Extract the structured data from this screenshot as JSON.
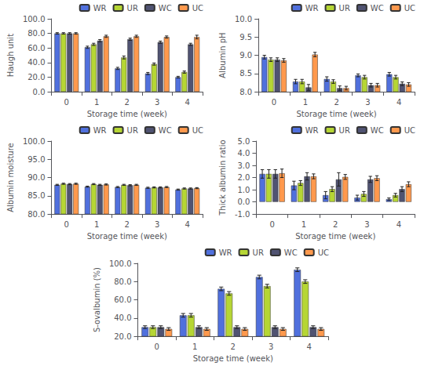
{
  "chart_data": [
    {
      "type": "bar",
      "categories": [
        0,
        1,
        2,
        3,
        4
      ],
      "series": [
        {
          "name": "WR",
          "values": [
            80,
            61,
            32,
            25,
            20
          ],
          "errors": [
            1.0,
            1.5,
            1.5,
            1.5,
            1.2
          ]
        },
        {
          "name": "UR",
          "values": [
            80,
            65,
            47,
            38,
            27
          ],
          "errors": [
            1.0,
            1.5,
            2.0,
            1.5,
            1.5
          ]
        },
        {
          "name": "WC",
          "values": [
            80,
            70,
            72,
            68,
            65
          ],
          "errors": [
            1.0,
            1.5,
            1.5,
            1.5,
            1.5
          ]
        },
        {
          "name": "UC",
          "values": [
            80,
            76,
            76,
            75,
            75
          ],
          "errors": [
            1.0,
            1.5,
            1.5,
            1.5,
            2.5
          ]
        }
      ],
      "xlabel": "Storage time (week)",
      "ylabel": "Haugh unit",
      "ylim": [
        0,
        100
      ],
      "yticks": [
        {
          "value": 0,
          "label": "0.0"
        },
        {
          "value": 20,
          "label": "20.0"
        },
        {
          "value": 40,
          "label": "40.0"
        },
        {
          "value": 60,
          "label": "60.0"
        },
        {
          "value": 80,
          "label": "80.0"
        },
        {
          "value": 100,
          "label": "100.0"
        }
      ],
      "legend": "upper right",
      "grid": false
    },
    {
      "type": "bar",
      "categories": [
        0,
        1,
        2,
        3,
        4
      ],
      "series": [
        {
          "name": "WR",
          "values": [
            8.95,
            8.28,
            8.35,
            8.45,
            8.48
          ],
          "errors": [
            0.05,
            0.06,
            0.06,
            0.04,
            0.05
          ]
        },
        {
          "name": "UR",
          "values": [
            8.88,
            8.28,
            8.28,
            8.4,
            8.4
          ],
          "errors": [
            0.05,
            0.06,
            0.05,
            0.05,
            0.05
          ]
        },
        {
          "name": "WC",
          "values": [
            8.88,
            8.12,
            8.1,
            8.18,
            8.22
          ],
          "errors": [
            0.05,
            0.08,
            0.06,
            0.05,
            0.05
          ]
        },
        {
          "name": "UC",
          "values": [
            8.86,
            9.02,
            8.1,
            8.18,
            8.2
          ],
          "errors": [
            0.05,
            0.06,
            0.05,
            0.05,
            0.05
          ]
        }
      ],
      "xlabel": "Storage time (week)",
      "ylabel": "Albumin pH",
      "ylim": [
        8.0,
        10.0
      ],
      "yticks": [
        {
          "value": 8.0,
          "label": "8.0"
        },
        8.5,
        {
          "value": 9.0,
          "label": "9.0"
        },
        9.5,
        {
          "value": 10.0,
          "label": "10.0"
        }
      ],
      "legend": "upper right",
      "grid": false
    },
    {
      "type": "bar",
      "categories": [
        0,
        1,
        2,
        3,
        4
      ],
      "series": [
        {
          "name": "WR",
          "values": [
            88.0,
            87.5,
            87.4,
            87.2,
            86.7
          ],
          "errors": [
            0.15,
            0.15,
            0.15,
            0.15,
            0.15
          ]
        },
        {
          "name": "UR",
          "values": [
            88.3,
            88.2,
            88.0,
            87.3,
            87.0
          ],
          "errors": [
            0.15,
            0.15,
            0.15,
            0.15,
            0.15
          ]
        },
        {
          "name": "WC",
          "values": [
            88.2,
            88.0,
            87.9,
            87.3,
            87.0
          ],
          "errors": [
            0.15,
            0.15,
            0.15,
            0.15,
            0.15
          ]
        },
        {
          "name": "UC",
          "values": [
            88.3,
            88.1,
            88.0,
            87.4,
            87.1
          ],
          "errors": [
            0.15,
            0.15,
            0.15,
            0.15,
            0.15
          ]
        }
      ],
      "xlabel": "Storage time (week)",
      "ylabel": "Albumin moisture",
      "ylim": [
        80.0,
        100.0
      ],
      "yticks": [
        {
          "value": 80.0,
          "label": "80.0"
        },
        {
          "value": 85.0,
          "label": "85.0"
        },
        {
          "value": 90.0,
          "label": "90.0"
        },
        {
          "value": 95.0,
          "label": "95.0"
        },
        {
          "value": 100.0,
          "label": "100.0"
        }
      ],
      "legend": "upper right",
      "grid": false
    },
    {
      "type": "bar",
      "categories": [
        0,
        1,
        2,
        3,
        4
      ],
      "series": [
        {
          "name": "WR",
          "values": [
            2.3,
            1.35,
            0.55,
            0.35,
            0.22
          ],
          "errors": [
            0.35,
            0.35,
            0.3,
            0.2,
            0.1
          ]
        },
        {
          "name": "UR",
          "values": [
            2.3,
            1.55,
            1.05,
            0.65,
            0.55
          ],
          "errors": [
            0.35,
            0.2,
            0.2,
            0.2,
            0.15
          ]
        },
        {
          "name": "WC",
          "values": [
            2.3,
            2.1,
            1.85,
            1.85,
            1.05
          ],
          "errors": [
            0.35,
            0.3,
            0.55,
            0.25,
            0.2
          ]
        },
        {
          "name": "UC",
          "values": [
            2.35,
            2.1,
            2.05,
            1.95,
            1.45
          ],
          "errors": [
            0.35,
            0.2,
            0.2,
            0.2,
            0.2
          ]
        }
      ],
      "xlabel": "Storage time (week)",
      "ylabel": "Thick albumin ratio",
      "ylim": [
        -1.0,
        5.0
      ],
      "yticks": [
        {
          "value": -1.0,
          "label": "-1.0"
        },
        {
          "value": 0.0,
          "label": "0.0"
        },
        {
          "value": 1.0,
          "label": "1.0"
        },
        {
          "value": 2.0,
          "label": "2.0"
        },
        {
          "value": 3.0,
          "label": "3.0"
        },
        {
          "value": 4.0,
          "label": "4.0"
        },
        {
          "value": 5.0,
          "label": "5.0"
        }
      ],
      "legend": "upper right",
      "grid": false
    },
    {
      "type": "bar",
      "categories": [
        0,
        1,
        2,
        3,
        4
      ],
      "series": [
        {
          "name": "WR",
          "values": [
            30,
            43,
            72,
            85,
            93
          ],
          "errors": [
            1.5,
            2,
            2,
            2,
            2
          ]
        },
        {
          "name": "UR",
          "values": [
            30,
            43,
            67,
            75,
            80
          ],
          "errors": [
            1.5,
            2,
            2,
            2,
            2
          ]
        },
        {
          "name": "WC",
          "values": [
            30,
            30,
            30,
            30,
            30
          ],
          "errors": [
            1.5,
            1.5,
            1.5,
            1.5,
            1.5
          ]
        },
        {
          "name": "UC",
          "values": [
            28,
            28,
            28,
            28,
            28
          ],
          "errors": [
            1.5,
            1.5,
            1.5,
            1.5,
            1.5
          ]
        }
      ],
      "xlabel": "Storage time (week)",
      "ylabel": "S-ovalbumin (%)",
      "ylim": [
        20.0,
        100.0
      ],
      "yticks": [
        {
          "value": 20.0,
          "label": "20.0"
        },
        {
          "value": 40.0,
          "label": "40.0"
        },
        {
          "value": 60.0,
          "label": "60.0"
        },
        {
          "value": 80.0,
          "label": "80.0"
        },
        {
          "value": 100.0,
          "label": "100.0"
        }
      ],
      "legend": "upper right",
      "grid": false
    }
  ]
}
